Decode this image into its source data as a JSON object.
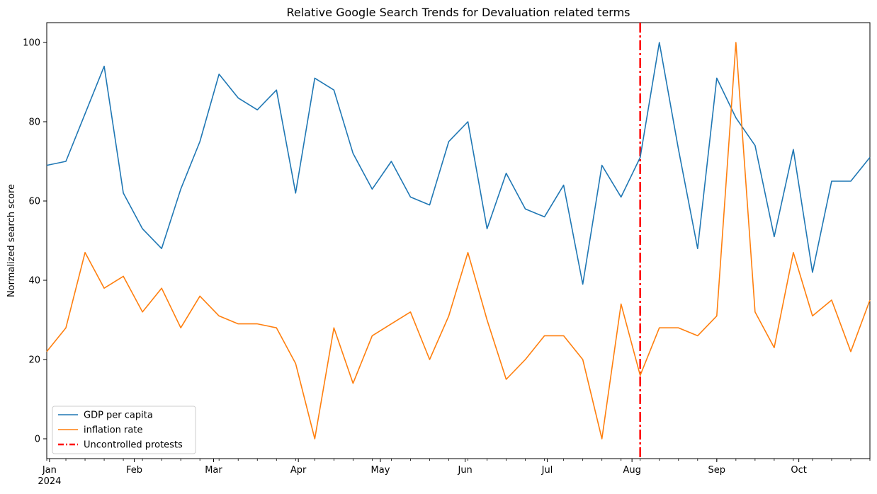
{
  "chart_data": {
    "type": "line",
    "title": "Relative Google Search Trends for Devaluation related terms",
    "xlabel": "",
    "ylabel": "Normalized search score",
    "ylim": [
      -5,
      105
    ],
    "yticks": [
      0,
      20,
      40,
      60,
      80,
      100
    ],
    "x": [
      "2023-12-31",
      "2024-01-07",
      "2024-01-14",
      "2024-01-21",
      "2024-01-28",
      "2024-02-04",
      "2024-02-11",
      "2024-02-18",
      "2024-02-25",
      "2024-03-03",
      "2024-03-10",
      "2024-03-17",
      "2024-03-24",
      "2024-03-31",
      "2024-04-07",
      "2024-04-14",
      "2024-04-21",
      "2024-04-28",
      "2024-05-05",
      "2024-05-12",
      "2024-05-19",
      "2024-05-26",
      "2024-06-02",
      "2024-06-09",
      "2024-06-16",
      "2024-06-23",
      "2024-06-30",
      "2024-07-07",
      "2024-07-14",
      "2024-07-21",
      "2024-07-28",
      "2024-08-04",
      "2024-08-11",
      "2024-08-18",
      "2024-08-25",
      "2024-09-01",
      "2024-09-08",
      "2024-09-15",
      "2024-09-22",
      "2024-09-29",
      "2024-10-06",
      "2024-10-13",
      "2024-10-20",
      "2024-10-27"
    ],
    "xlim": [
      "2023-12-31",
      "2024-10-27"
    ],
    "series": [
      {
        "name": "GDP per capita",
        "color": "#1f77b4",
        "values": [
          69,
          70,
          82,
          94,
          62,
          53,
          48,
          63,
          75,
          92,
          86,
          83,
          88,
          62,
          91,
          88,
          72,
          63,
          70,
          61,
          59,
          75,
          80,
          53,
          67,
          58,
          56,
          64,
          39,
          69,
          61,
          71,
          100,
          73,
          48,
          91,
          81,
          74,
          51,
          73,
          42,
          65,
          65,
          71
        ]
      },
      {
        "name": "inflation rate",
        "color": "#ff7f0e",
        "values": [
          22,
          28,
          47,
          38,
          41,
          32,
          38,
          28,
          36,
          31,
          29,
          29,
          28,
          19,
          0,
          28,
          14,
          26,
          29,
          32,
          20,
          31,
          47,
          30,
          15,
          20,
          26,
          26,
          20,
          0,
          34,
          16,
          28,
          28,
          26,
          31,
          100,
          32,
          23,
          47,
          31,
          35,
          22,
          35
        ]
      }
    ],
    "vlines": [
      {
        "name": "Uncontrolled protests",
        "x": "2024-08-04",
        "color": "#ff0000",
        "style": "dashdot"
      }
    ],
    "x_tick_labels": [
      {
        "date": "2024-01-01",
        "label": "Jan",
        "sublabel": "2024"
      },
      {
        "date": "2024-02-01",
        "label": "Feb",
        "sublabel": ""
      },
      {
        "date": "2024-03-01",
        "label": "Mar",
        "sublabel": ""
      },
      {
        "date": "2024-04-01",
        "label": "Apr",
        "sublabel": ""
      },
      {
        "date": "2024-05-01",
        "label": "May",
        "sublabel": ""
      },
      {
        "date": "2024-06-01",
        "label": "Jun",
        "sublabel": ""
      },
      {
        "date": "2024-07-01",
        "label": "Jul",
        "sublabel": ""
      },
      {
        "date": "2024-08-01",
        "label": "Aug",
        "sublabel": ""
      },
      {
        "date": "2024-09-01",
        "label": "Sep",
        "sublabel": ""
      },
      {
        "date": "2024-10-01",
        "label": "Oct",
        "sublabel": ""
      }
    ],
    "legend": {
      "placement": "lower-left",
      "entries": [
        "GDP per capita",
        "inflation rate",
        "Uncontrolled protests"
      ]
    },
    "grid": false
  }
}
